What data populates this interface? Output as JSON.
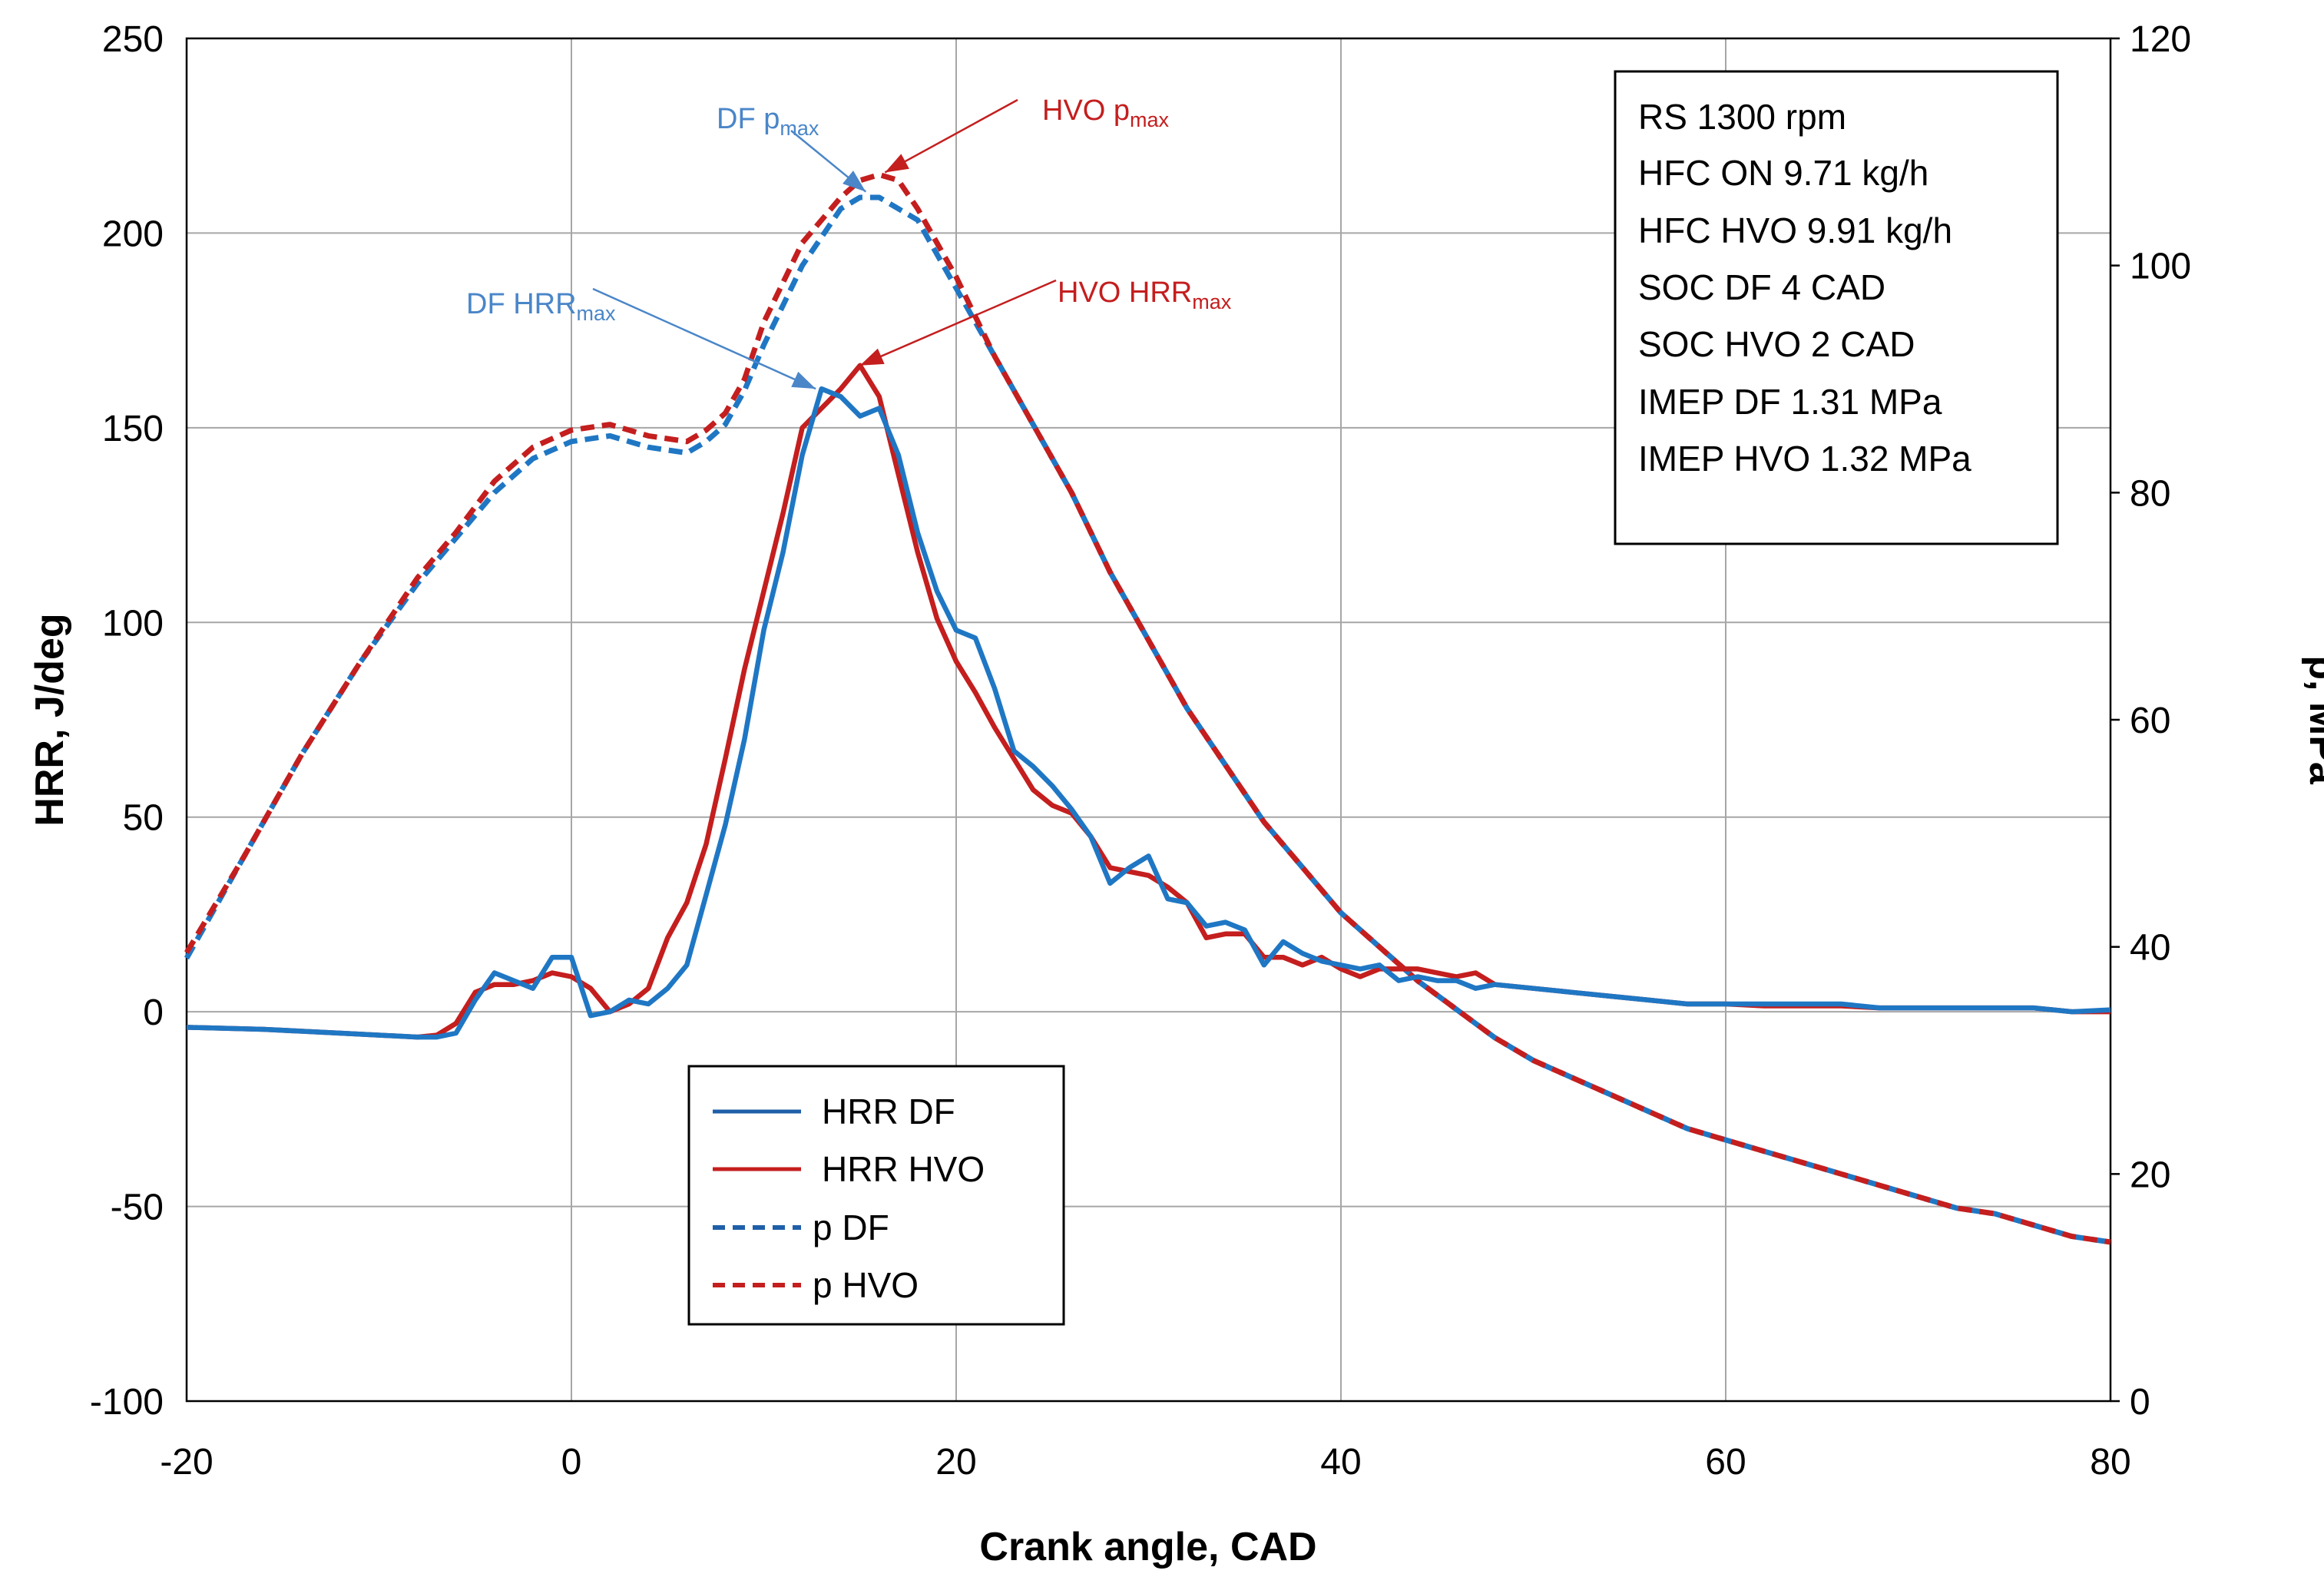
{
  "chart_data": {
    "type": "line",
    "title": "",
    "xlabel": "Crank angle, CAD",
    "ylabel": "HRR, J/deg",
    "y2label": "p, MPa",
    "xlim": [
      -20,
      80
    ],
    "ylim": [
      -100,
      250
    ],
    "y2lim": [
      0,
      120
    ],
    "xticks": [
      -20,
      0,
      20,
      40,
      60,
      80
    ],
    "yticks": [
      -100,
      -50,
      0,
      50,
      100,
      150,
      200,
      250
    ],
    "y2ticks": [
      0,
      20,
      40,
      60,
      80,
      100,
      120
    ],
    "xtick_labels": [
      "-20",
      "0",
      "20",
      "40",
      "60",
      "80"
    ],
    "ytick_labels": [
      "-100",
      "-50",
      "0",
      "50",
      "100",
      "150",
      "200",
      "250"
    ],
    "y2tick_labels": [
      "0",
      "20",
      "40",
      "60",
      "80",
      "100",
      "120"
    ],
    "grid": true,
    "legend_position": "bottom-left",
    "series": [
      {
        "name": "HRR DF",
        "axis": "left",
        "style": "solid",
        "color": "#1F77C4",
        "points": [
          [
            -20,
            -4
          ],
          [
            -16,
            -4.5
          ],
          [
            -12,
            -5.5
          ],
          [
            -8,
            -6.5
          ],
          [
            -7,
            -6.5
          ],
          [
            -6,
            -5.5
          ],
          [
            -5,
            3
          ],
          [
            -4,
            10
          ],
          [
            -3,
            8
          ],
          [
            -2,
            6
          ],
          [
            -1,
            14
          ],
          [
            0,
            14
          ],
          [
            1,
            -1
          ],
          [
            2,
            0
          ],
          [
            3,
            3
          ],
          [
            4,
            2
          ],
          [
            5,
            6
          ],
          [
            6,
            12
          ],
          [
            7,
            30
          ],
          [
            8,
            48
          ],
          [
            9,
            70
          ],
          [
            10,
            98
          ],
          [
            11,
            118
          ],
          [
            12,
            143
          ],
          [
            13,
            160
          ],
          [
            14,
            158
          ],
          [
            15,
            153
          ],
          [
            16,
            155
          ],
          [
            17,
            143
          ],
          [
            18,
            123
          ],
          [
            19,
            108
          ],
          [
            20,
            98
          ],
          [
            21,
            96
          ],
          [
            22,
            83
          ],
          [
            23,
            67
          ],
          [
            24,
            63
          ],
          [
            25,
            58
          ],
          [
            26,
            52
          ],
          [
            27,
            45
          ],
          [
            28,
            33
          ],
          [
            29,
            37
          ],
          [
            30,
            40
          ],
          [
            31,
            29
          ],
          [
            32,
            28
          ],
          [
            33,
            22
          ],
          [
            34,
            23
          ],
          [
            35,
            21
          ],
          [
            36,
            12
          ],
          [
            37,
            18
          ],
          [
            38,
            15
          ],
          [
            39,
            13
          ],
          [
            40,
            12
          ],
          [
            41,
            11
          ],
          [
            42,
            12
          ],
          [
            43,
            8
          ],
          [
            44,
            9
          ],
          [
            45,
            8
          ],
          [
            46,
            8
          ],
          [
            47,
            6
          ],
          [
            48,
            7
          ],
          [
            50,
            6
          ],
          [
            52,
            5
          ],
          [
            54,
            4
          ],
          [
            56,
            3
          ],
          [
            58,
            2
          ],
          [
            60,
            2
          ],
          [
            62,
            2
          ],
          [
            64,
            2
          ],
          [
            66,
            2
          ],
          [
            68,
            1
          ],
          [
            70,
            1
          ],
          [
            72,
            1
          ],
          [
            74,
            1
          ],
          [
            76,
            1
          ],
          [
            78,
            0
          ],
          [
            80,
            0.5
          ]
        ]
      },
      {
        "name": "HRR HVO",
        "axis": "left",
        "style": "solid",
        "color": "#C41E1E",
        "points": [
          [
            -20,
            -4
          ],
          [
            -16,
            -4.5
          ],
          [
            -12,
            -5.5
          ],
          [
            -8,
            -6.5
          ],
          [
            -7,
            -6
          ],
          [
            -6,
            -3
          ],
          [
            -5,
            5
          ],
          [
            -4,
            7
          ],
          [
            -3,
            7
          ],
          [
            -2,
            8
          ],
          [
            -1,
            10
          ],
          [
            0,
            9
          ],
          [
            1,
            6
          ],
          [
            2,
            0
          ],
          [
            3,
            2
          ],
          [
            4,
            6
          ],
          [
            5,
            19
          ],
          [
            6,
            28
          ],
          [
            7,
            43
          ],
          [
            8,
            65
          ],
          [
            9,
            88
          ],
          [
            10,
            108
          ],
          [
            11,
            128
          ],
          [
            12,
            150
          ],
          [
            13,
            155
          ],
          [
            14,
            160
          ],
          [
            15,
            166
          ],
          [
            16,
            158
          ],
          [
            17,
            138
          ],
          [
            18,
            118
          ],
          [
            19,
            101
          ],
          [
            20,
            90
          ],
          [
            21,
            82
          ],
          [
            22,
            73
          ],
          [
            23,
            65
          ],
          [
            24,
            57
          ],
          [
            25,
            53
          ],
          [
            26,
            51
          ],
          [
            27,
            45
          ],
          [
            28,
            37
          ],
          [
            29,
            36
          ],
          [
            30,
            35
          ],
          [
            31,
            32
          ],
          [
            32,
            28
          ],
          [
            33,
            19
          ],
          [
            34,
            20
          ],
          [
            35,
            20
          ],
          [
            36,
            14
          ],
          [
            37,
            14
          ],
          [
            38,
            12
          ],
          [
            39,
            14
          ],
          [
            40,
            11
          ],
          [
            41,
            9
          ],
          [
            42,
            11
          ],
          [
            43,
            11
          ],
          [
            44,
            11
          ],
          [
            45,
            10
          ],
          [
            46,
            9
          ],
          [
            47,
            10
          ],
          [
            48,
            7
          ],
          [
            50,
            6
          ],
          [
            52,
            5
          ],
          [
            54,
            4
          ],
          [
            56,
            3
          ],
          [
            58,
            2
          ],
          [
            60,
            2
          ],
          [
            62,
            1.5
          ],
          [
            64,
            1.5
          ],
          [
            66,
            1.5
          ],
          [
            68,
            1
          ],
          [
            70,
            1
          ],
          [
            72,
            1
          ],
          [
            74,
            1
          ],
          [
            76,
            1
          ],
          [
            78,
            0
          ],
          [
            80,
            0
          ]
        ]
      },
      {
        "name": "p DF",
        "axis": "right",
        "style": "dashed",
        "color": "#1F77C4",
        "points": [
          [
            -20,
            39
          ],
          [
            -17,
            48
          ],
          [
            -14,
            57
          ],
          [
            -11,
            65
          ],
          [
            -8,
            72
          ],
          [
            -6,
            76
          ],
          [
            -4,
            80
          ],
          [
            -2,
            83
          ],
          [
            0,
            84.5
          ],
          [
            2,
            85
          ],
          [
            4,
            84
          ],
          [
            6,
            83.5
          ],
          [
            7,
            84.5
          ],
          [
            8,
            86
          ],
          [
            9,
            89
          ],
          [
            10,
            93
          ],
          [
            12,
            100
          ],
          [
            14,
            105
          ],
          [
            15,
            106
          ],
          [
            16,
            106
          ],
          [
            17,
            105
          ],
          [
            18,
            104
          ],
          [
            20,
            98
          ],
          [
            22,
            92
          ],
          [
            24,
            86
          ],
          [
            26,
            80
          ],
          [
            28,
            73
          ],
          [
            30,
            67
          ],
          [
            32,
            61
          ],
          [
            34,
            56
          ],
          [
            36,
            51
          ],
          [
            38,
            47
          ],
          [
            40,
            43
          ],
          [
            42,
            40
          ],
          [
            44,
            37
          ],
          [
            46,
            34.5
          ],
          [
            48,
            32
          ],
          [
            50,
            30
          ],
          [
            52,
            28.5
          ],
          [
            54,
            27
          ],
          [
            56,
            25.5
          ],
          [
            58,
            24
          ],
          [
            60,
            23
          ],
          [
            62,
            22
          ],
          [
            64,
            21
          ],
          [
            66,
            20
          ],
          [
            68,
            19
          ],
          [
            70,
            18
          ],
          [
            72,
            17
          ],
          [
            74,
            16.5
          ],
          [
            76,
            15.5
          ],
          [
            78,
            14.5
          ],
          [
            80,
            14
          ]
        ]
      },
      {
        "name": "p HVO",
        "axis": "right",
        "style": "dashed",
        "color": "#C41E1E",
        "points": [
          [
            -20,
            39.5
          ],
          [
            -17,
            48
          ],
          [
            -14,
            57
          ],
          [
            -11,
            65
          ],
          [
            -8,
            72.5
          ],
          [
            -6,
            76.5
          ],
          [
            -4,
            81
          ],
          [
            -2,
            84
          ],
          [
            0,
            85.5
          ],
          [
            2,
            86
          ],
          [
            4,
            85
          ],
          [
            6,
            84.5
          ],
          [
            7,
            85.5
          ],
          [
            8,
            87
          ],
          [
            9,
            90
          ],
          [
            10,
            95
          ],
          [
            12,
            102
          ],
          [
            14,
            106
          ],
          [
            15,
            107.5
          ],
          [
            16,
            108
          ],
          [
            17,
            107.5
          ],
          [
            18,
            105
          ],
          [
            20,
            99
          ],
          [
            22,
            92
          ],
          [
            24,
            86
          ],
          [
            26,
            80
          ],
          [
            28,
            73
          ],
          [
            30,
            67
          ],
          [
            32,
            61
          ],
          [
            34,
            56
          ],
          [
            36,
            51
          ],
          [
            38,
            47
          ],
          [
            40,
            43
          ],
          [
            42,
            40
          ],
          [
            44,
            37
          ],
          [
            46,
            34.5
          ],
          [
            48,
            32
          ],
          [
            50,
            30
          ],
          [
            52,
            28.5
          ],
          [
            54,
            27
          ],
          [
            56,
            25.5
          ],
          [
            58,
            24
          ],
          [
            60,
            23
          ],
          [
            62,
            22
          ],
          [
            64,
            21
          ],
          [
            66,
            20
          ],
          [
            68,
            19
          ],
          [
            70,
            18
          ],
          [
            72,
            17
          ],
          [
            74,
            16.5
          ],
          [
            76,
            15.5
          ],
          [
            78,
            14.5
          ],
          [
            80,
            14
          ]
        ]
      }
    ],
    "annotations": [
      {
        "id": "df-pmax",
        "main": "DF p",
        "sub": "max",
        "color": "#4A86C8",
        "point_axis": "right",
        "point": [
          15.3,
          106.5
        ]
      },
      {
        "id": "hvo-pmax",
        "main": "HVO p",
        "sub": "max",
        "color": "#C41E1E",
        "point_axis": "right",
        "point": [
          16.3,
          108.2
        ]
      },
      {
        "id": "df-hrrmax",
        "main": "DF HRR",
        "sub": "max",
        "color": "#4A86C8",
        "point_axis": "left",
        "point": [
          12.7,
          160
        ]
      },
      {
        "id": "hvo-hrrmax",
        "main": "HVO HRR",
        "sub": "max",
        "color": "#C41E1E",
        "point_axis": "left",
        "point": [
          15.0,
          166
        ]
      }
    ],
    "info_box": [
      "RS 1300 rpm",
      "HFC ON 9.71 kg/h",
      "HFC HVO 9.91 kg/h",
      "SOC DF 4 CAD",
      "SOC HVO 2 CAD",
      "IMEP DF 1.31 MPa",
      "IMEP HVO 1.32 MPa"
    ]
  }
}
